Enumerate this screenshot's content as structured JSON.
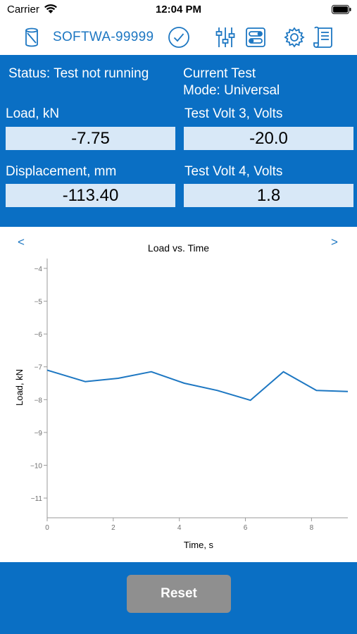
{
  "status_bar": {
    "carrier": "Carrier",
    "time": "12:04 PM"
  },
  "toolbar": {
    "device_label": "SOFTWA-99999",
    "icons": [
      "device-icon",
      "connected-check-icon",
      "sliders-icon",
      "toggles-icon",
      "gear-icon",
      "scroll-icon"
    ],
    "accent_color": "#1d77c2"
  },
  "panel": {
    "status": "Status: Test not running",
    "mode_line1": "Current Test",
    "mode_line2": "Mode: Universal",
    "load_label": "Load, kN",
    "load_value": "-7.75",
    "volt3_label": "Test Volt 3, Volts",
    "volt3_value": "-20.0",
    "disp_label": "Displacement, mm",
    "disp_value": "-113.40",
    "volt4_label": "Test Volt 4, Volts",
    "volt4_value": "1.8",
    "background_color": "#0a6fc4"
  },
  "chart_nav": {
    "prev": "<",
    "next": ">"
  },
  "chart_data": {
    "type": "line",
    "title": "Load vs. Time",
    "xlabel": "Time, s",
    "ylabel": "Load, kN",
    "xlim": [
      0,
      9.1
    ],
    "ylim": [
      -11.6,
      -3.7
    ],
    "xticks": [
      0,
      2,
      4,
      6,
      8
    ],
    "yticks": [
      -4,
      -5,
      -6,
      -7,
      -8,
      -9,
      -10,
      -11
    ],
    "grid": false,
    "series": [
      {
        "color": "#1d77c2",
        "x": [
          0,
          1.15,
          2.15,
          3.15,
          4.15,
          5.15,
          6.15,
          7.15,
          8.15,
          9.1
        ],
        "y": [
          -7.1,
          -7.45,
          -7.35,
          -7.15,
          -7.5,
          -7.72,
          -8.02,
          -7.15,
          -7.72,
          -7.75
        ]
      }
    ]
  },
  "footer": {
    "reset_label": "Reset"
  }
}
